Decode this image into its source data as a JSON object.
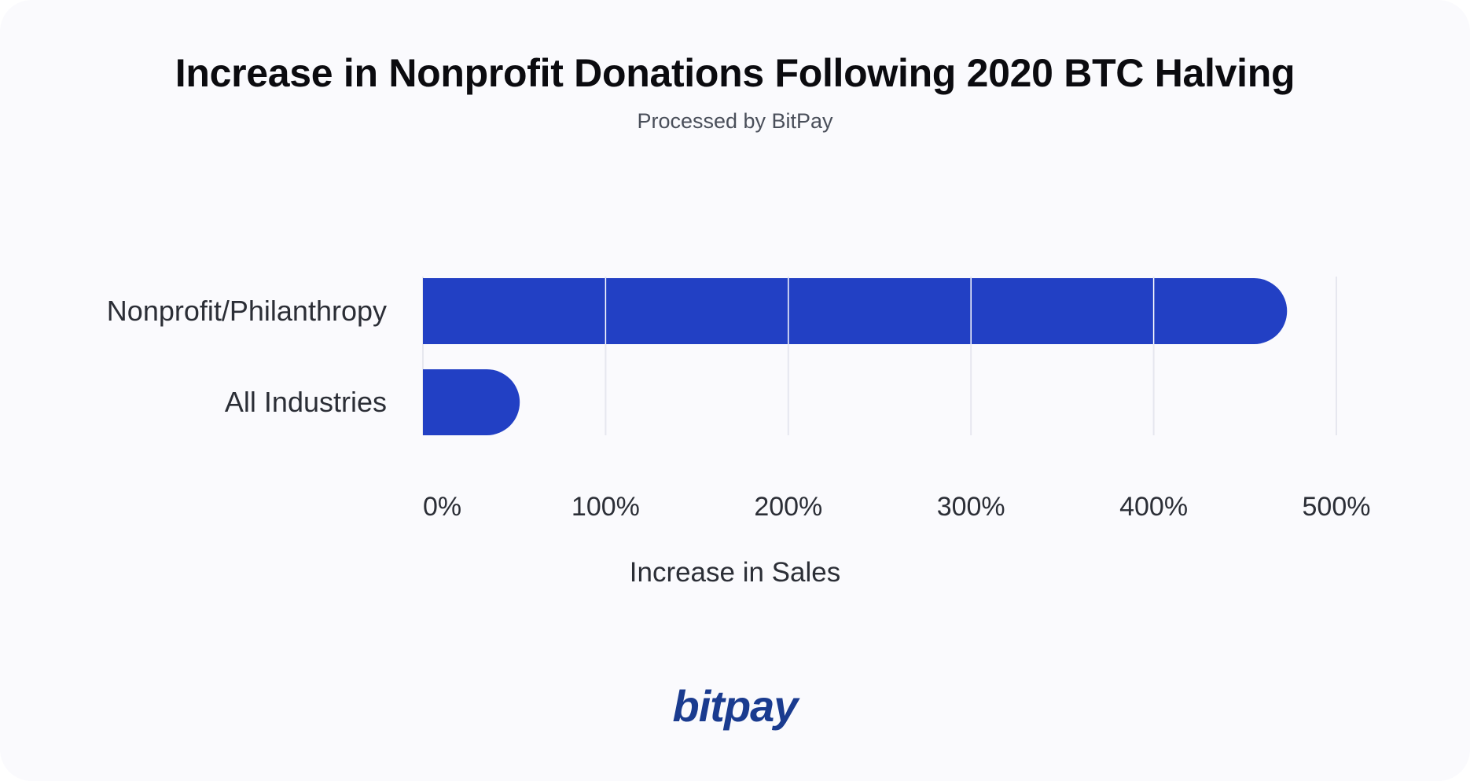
{
  "header": {
    "title": "Increase in Nonprofit Donations Following 2020 BTC Halving",
    "subtitle": "Processed by BitPay"
  },
  "brand": {
    "logo_text": "bitpay",
    "logo_color": "#1a3b8f"
  },
  "colors": {
    "bar": "#2240c4",
    "grid": "#e6e7ef",
    "background": "#fafafd"
  },
  "chart_data": {
    "type": "bar",
    "orientation": "horizontal",
    "title": "Increase in Nonprofit Donations Following 2020 BTC Halving",
    "subtitle": "Processed by BitPay",
    "categories": [
      "Nonprofit/Philanthropy",
      "All Industries"
    ],
    "values": [
      473,
      53
    ],
    "unit": "%",
    "xlabel": "Increase in Sales",
    "ylabel": "",
    "xlim": [
      0,
      500
    ],
    "xticks": [
      0,
      100,
      200,
      300,
      400,
      500
    ],
    "xtick_labels": [
      "0%",
      "100%",
      "200%",
      "300%",
      "400%",
      "500%"
    ],
    "grid": true,
    "legend": "none"
  }
}
